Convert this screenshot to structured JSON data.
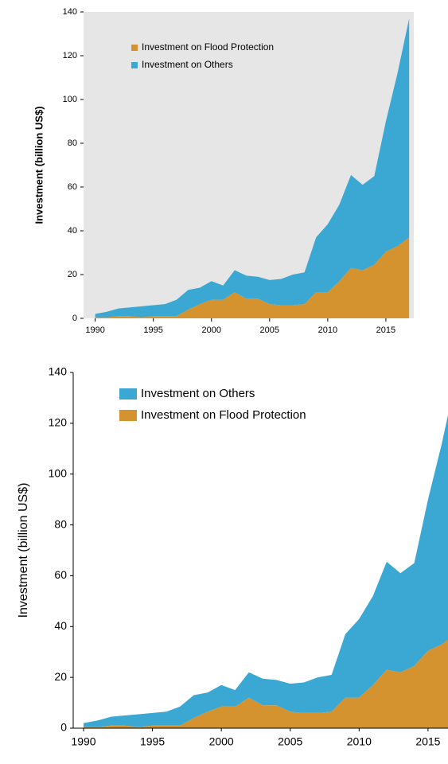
{
  "chart_data": [
    {
      "type": "area",
      "stacked": true,
      "y_label": "Investment (billion US$)",
      "x": [
        1990,
        1991,
        1992,
        1993,
        1994,
        1995,
        1996,
        1997,
        1998,
        1999,
        2000,
        2001,
        2002,
        2003,
        2004,
        2005,
        2006,
        2007,
        2008,
        2009,
        2010,
        2011,
        2012,
        2013,
        2014,
        2015,
        2016,
        2017
      ],
      "series": [
        {
          "name": "Investment on Flood Protection",
          "color": "#d4932f",
          "values": [
            0.5,
            0.5,
            1,
            1,
            0.5,
            1,
            1,
            1,
            4,
            6.5,
            8.5,
            8.5,
            12,
            9,
            9,
            6.5,
            6,
            6,
            6.5,
            12,
            12,
            17,
            23,
            22,
            24.5,
            30.5,
            33,
            37
          ]
        },
        {
          "name": "Investment on Others",
          "color": "#3aa8d2",
          "values": [
            1.5,
            2.5,
            3.5,
            4,
            5,
            5,
            5.5,
            7.5,
            9,
            7.5,
            8.5,
            6.5,
            10,
            10.5,
            10,
            11,
            12,
            14,
            14.5,
            25,
            31,
            35,
            42.5,
            39,
            40.5,
            59.5,
            79,
            100
          ]
        }
      ],
      "xlim": [
        1989,
        2017.4
      ],
      "xticks": [
        1990,
        1995,
        2000,
        2005,
        2010,
        2015
      ],
      "ylim": [
        0,
        140
      ],
      "yticks": [
        0,
        20,
        40,
        60,
        80,
        100,
        120,
        140
      ],
      "background": "#e6e6e6",
      "y_label_bold": true,
      "legend_reversed": false
    },
    {
      "type": "area",
      "stacked": true,
      "y_label": "Investment (billion US$)",
      "x": [
        1990,
        1991,
        1992,
        1993,
        1994,
        1995,
        1996,
        1997,
        1998,
        1999,
        2000,
        2001,
        2002,
        2003,
        2004,
        2005,
        2006,
        2007,
        2008,
        2009,
        2010,
        2011,
        2012,
        2013,
        2014,
        2015,
        2016,
        2017
      ],
      "series": [
        {
          "name": "Investment on Flood Protection",
          "color": "#d4932f",
          "values": [
            0.5,
            0.5,
            1,
            1,
            0.5,
            1,
            1,
            1,
            4,
            6.5,
            8.5,
            8.5,
            12,
            9,
            9,
            6.5,
            6,
            6,
            6.5,
            12,
            12,
            17,
            23,
            22,
            24.5,
            30.5,
            33,
            37
          ]
        },
        {
          "name": "Investment on Others",
          "color": "#3aa8d2",
          "values": [
            1.5,
            2.5,
            3.5,
            4,
            5,
            5,
            5.5,
            7.5,
            9,
            7.5,
            8.5,
            6.5,
            10,
            10.5,
            10,
            11,
            12,
            14,
            14.5,
            25,
            31,
            35,
            42.5,
            39,
            40.5,
            59.5,
            79,
            100
          ]
        }
      ],
      "xlim": [
        1989.25,
        2016.45
      ],
      "xticks": [
        1990,
        1995,
        2000,
        2005,
        2010,
        2015
      ],
      "ylim": [
        0,
        140
      ],
      "yticks": [
        0,
        20,
        40,
        60,
        80,
        100,
        120,
        140
      ],
      "background": "#ffffff",
      "y_label_bold": false,
      "legend_reversed": true
    }
  ]
}
